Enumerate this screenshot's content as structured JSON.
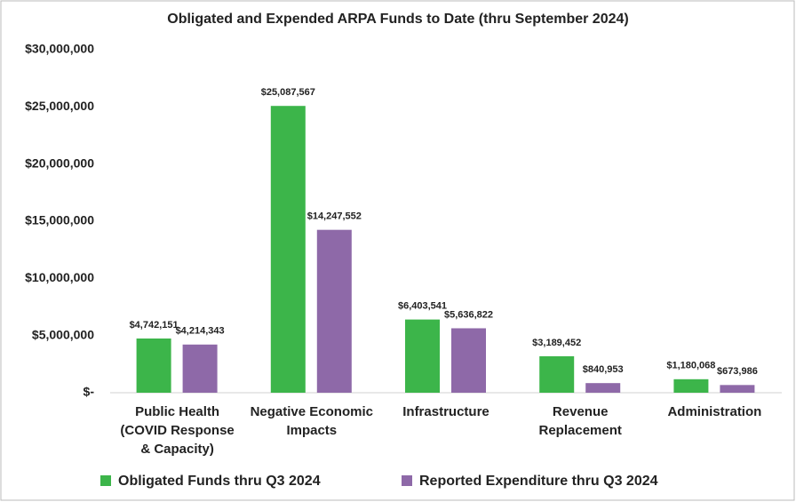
{
  "chart_data": {
    "type": "bar",
    "title": "Obligated and Expended ARPA Funds to Date (thru September 2024)",
    "categories": [
      "Public Health (COVID Response & Capacity)",
      "Negative Economic Impacts",
      "Infrastructure",
      "Revenue Replacement",
      "Administration"
    ],
    "series": [
      {
        "name": "Obligated Funds thru Q3 2024",
        "color": "#3cb54a",
        "values": [
          4742151,
          25087567,
          6403541,
          3189452,
          1180068
        ],
        "value_labels": [
          "$4,742,151",
          "$25,087,567",
          "$6,403,541",
          "$3,189,452",
          "$1,180,068"
        ]
      },
      {
        "name": "Reported Expenditure thru Q3 2024",
        "color": "#8e69a8",
        "values": [
          4214343,
          14247552,
          5636822,
          840953,
          673986
        ],
        "value_labels": [
          "$4,214,343",
          "$14,247,552",
          "$5,636,822",
          "$840,953",
          "$673,986"
        ]
      }
    ],
    "ylim": [
      0,
      30000000
    ],
    "yticks": [
      {
        "value": 0,
        "label": "$-"
      },
      {
        "value": 5000000,
        "label": "$5,000,000"
      },
      {
        "value": 10000000,
        "label": "$10,000,000"
      },
      {
        "value": 15000000,
        "label": "$15,000,000"
      },
      {
        "value": 20000000,
        "label": "$20,000,000"
      },
      {
        "value": 25000000,
        "label": "$25,000,000"
      },
      {
        "value": 30000000,
        "label": "$30,000,000"
      }
    ],
    "grid": false,
    "legend": "bottom"
  }
}
